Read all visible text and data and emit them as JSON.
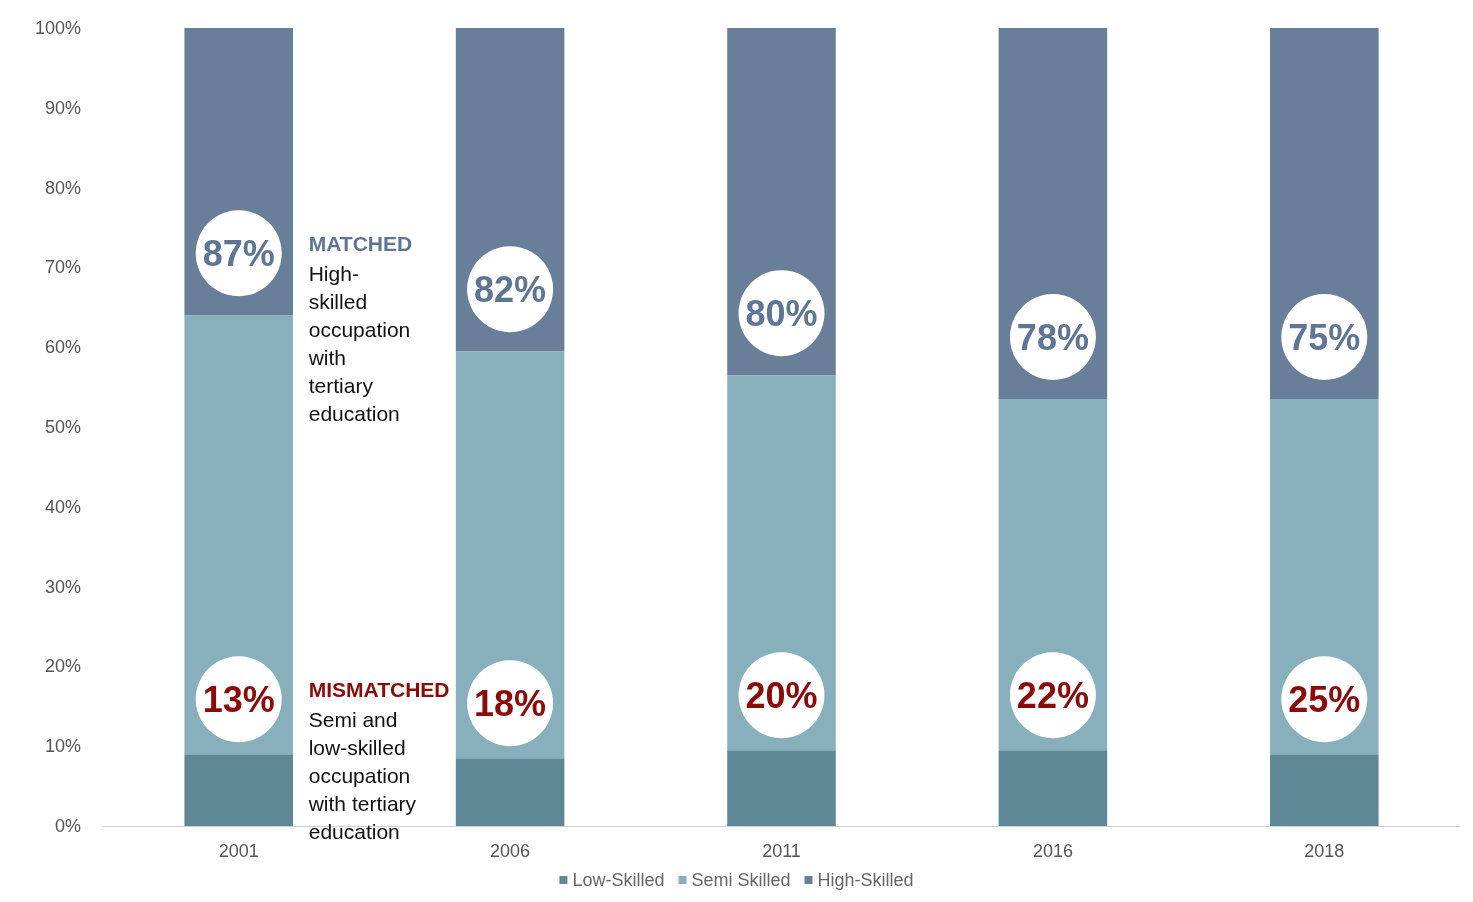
{
  "chart_data": {
    "type": "bar",
    "stacked": true,
    "categories": [
      "2001",
      "2006",
      "2011",
      "2016",
      "2018"
    ],
    "series": [
      {
        "name": "Low-Skilled",
        "color": "#5e8896",
        "values": [
          9,
          8.5,
          9.5,
          9.5,
          9
        ]
      },
      {
        "name": "Semi Skilled",
        "color": "#88b0bc",
        "values": [
          55,
          51,
          47,
          44,
          44.5
        ]
      },
      {
        "name": "High-Skilled",
        "color": "#697f99",
        "values": [
          36,
          40.5,
          43.5,
          46.5,
          46.5
        ]
      }
    ],
    "ylim": [
      0,
      100
    ],
    "yticks": [
      {
        "value": 0,
        "label": "0%"
      },
      {
        "value": 10,
        "label": "10%"
      },
      {
        "value": 20,
        "label": "20%"
      },
      {
        "value": 30,
        "label": "30%"
      },
      {
        "value": 40,
        "label": "40%"
      },
      {
        "value": 50,
        "label": "50%"
      },
      {
        "value": 60,
        "label": "60%"
      },
      {
        "value": 70,
        "label": "70%"
      },
      {
        "value": 80,
        "label": "80%"
      },
      {
        "value": 90,
        "label": "90%"
      },
      {
        "value": 100,
        "label": "100%"
      }
    ],
    "grid": false,
    "legend": "bottom",
    "annotations": [
      "87%",
      "82%",
      "80%",
      "78%",
      "75%",
      "13%",
      "18%",
      "20%",
      "22%",
      "25%",
      "MATCHED\nHigh-\nskilled\noccupation\nwith\ntertiary\neducation",
      "MISMATCHED\nSemi and\nlow-skilled\noccupation\nwith tertiary\neducation"
    ]
  }
}
